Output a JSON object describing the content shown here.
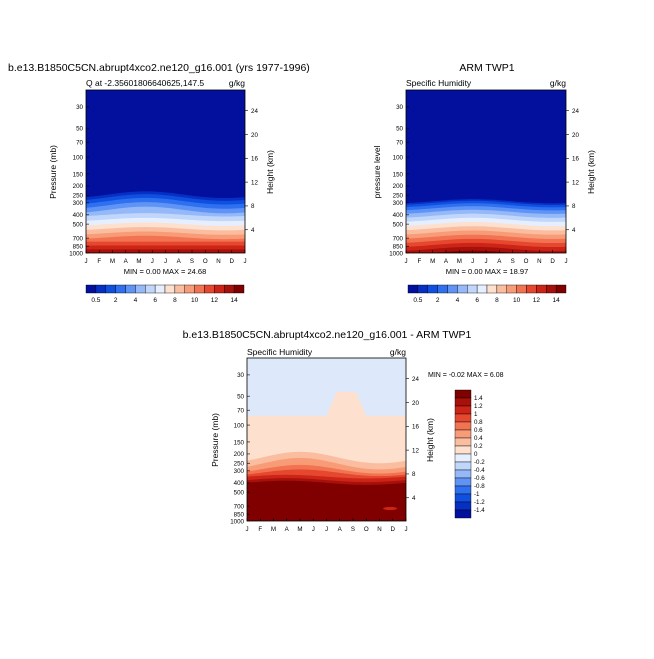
{
  "panels": {
    "model": {
      "title": "b.e13.B1850C5CN.abrupt4xco2.ne120_g16.001 (yrs 1977-1996)",
      "subtitle": "Q at -2.35601806640625,147.5",
      "units": "g/kg",
      "ylabel": "Pressure (mb)",
      "y2label": "Height (km)",
      "minmax": "MIN =   0.00 MAX =  24.68"
    },
    "obs": {
      "title": "ARM TWP1",
      "subtitle": "Specific Humidity",
      "units": "g/kg",
      "ylabel": "pressure level",
      "y2label": "Height (km)",
      "minmax": "MIN =   0.00 MAX =  18.97"
    },
    "diff": {
      "title": "b.e13.B1850C5CN.abrupt4xco2.ne120_g16.001 - ARM TWP1",
      "subtitle": "Specific Humidity",
      "units": "g/kg",
      "ylabel": "Pressure (mb)",
      "y2label": "Height (km)",
      "minmax": "MIN =  -0.02 MAX =   6.08"
    }
  },
  "chart_data": [
    {
      "type": "heatmap",
      "name": "model",
      "title": "b.e13.B1850C5CN.abrupt4xco2.ne120_g16.001 (yrs 1977-1996)",
      "x": [
        "J",
        "F",
        "M",
        "A",
        "M",
        "J",
        "J",
        "A",
        "S",
        "O",
        "N",
        "D",
        "J"
      ],
      "y_pressure_ticks": [
        30,
        50,
        70,
        100,
        150,
        200,
        250,
        300,
        400,
        500,
        700,
        850,
        1000
      ],
      "y_height_ticks": [
        4,
        8,
        12,
        16,
        20,
        24
      ],
      "ylim": [
        1000,
        20
      ],
      "colorbar_levels": [
        "0.5",
        "1",
        "2",
        "3",
        "4",
        "5",
        "6",
        "7",
        "8",
        "9",
        "10",
        "11",
        "12",
        "13",
        "14"
      ],
      "colorbar_labels": [
        "0.5",
        "2",
        "4",
        "6",
        "8",
        "10",
        "12",
        "14"
      ],
      "colors": [
        "#03109e",
        "#0630c4",
        "#0f50e0",
        "#2f70f0",
        "#5f94f6",
        "#94b8f8",
        "#c0d6fb",
        "#e6efff",
        "#fee0cf",
        "#fbbd9f",
        "#f89c78",
        "#f27352",
        "#e6482f",
        "#cc2417",
        "#a8100b",
        "#800000"
      ],
      "min": 0.0,
      "max": 24.68
    },
    {
      "type": "heatmap",
      "name": "obs",
      "title": "ARM TWP1",
      "x": [
        "J",
        "F",
        "M",
        "A",
        "M",
        "J",
        "J",
        "A",
        "S",
        "O",
        "N",
        "D",
        "J"
      ],
      "y_pressure_ticks": [
        30,
        50,
        70,
        100,
        150,
        200,
        250,
        300,
        400,
        500,
        700,
        850,
        1000
      ],
      "y_height_ticks": [
        4,
        8,
        12,
        16,
        20,
        24
      ],
      "ylim": [
        1000,
        20
      ],
      "colorbar_levels": [
        "0.5",
        "1",
        "2",
        "3",
        "4",
        "5",
        "6",
        "7",
        "8",
        "9",
        "10",
        "11",
        "12",
        "13",
        "14"
      ],
      "colorbar_labels": [
        "0.5",
        "2",
        "4",
        "6",
        "8",
        "10",
        "12",
        "14"
      ],
      "colors": [
        "#03109e",
        "#0630c4",
        "#0f50e0",
        "#2f70f0",
        "#5f94f6",
        "#94b8f8",
        "#c0d6fb",
        "#e6efff",
        "#fee0cf",
        "#fbbd9f",
        "#f89c78",
        "#f27352",
        "#e6482f",
        "#cc2417",
        "#a8100b",
        "#800000"
      ],
      "min": 0.0,
      "max": 18.97
    },
    {
      "type": "heatmap",
      "name": "diff",
      "title": "b.e13.B1850C5CN.abrupt4xco2.ne120_g16.001 - ARM TWP1",
      "x": [
        "J",
        "F",
        "M",
        "A",
        "M",
        "J",
        "J",
        "A",
        "S",
        "O",
        "N",
        "D",
        "J"
      ],
      "y_pressure_ticks": [
        30,
        50,
        70,
        100,
        150,
        200,
        250,
        300,
        400,
        500,
        700,
        850,
        1000
      ],
      "y_height_ticks": [
        4,
        8,
        12,
        16,
        20,
        24
      ],
      "ylim": [
        1000,
        20
      ],
      "colorbar_levels": [
        "1.4",
        "1.2",
        "1",
        "0.8",
        "0.6",
        "0.4",
        "0.2",
        "0",
        "-0.2",
        "-0.4",
        "-0.6",
        "-0.8",
        "-1",
        "-1.2",
        "-1.4"
      ],
      "colors": [
        "#800000",
        "#a8100b",
        "#cc2417",
        "#e6482f",
        "#f27352",
        "#f89c78",
        "#fbbd9f",
        "#fee0cf",
        "#e6efff",
        "#c0d6fb",
        "#94b8f8",
        "#5f94f6",
        "#2f70f0",
        "#0f50e0",
        "#0630c4",
        "#03109e"
      ],
      "min": -0.02,
      "max": 6.08
    }
  ]
}
